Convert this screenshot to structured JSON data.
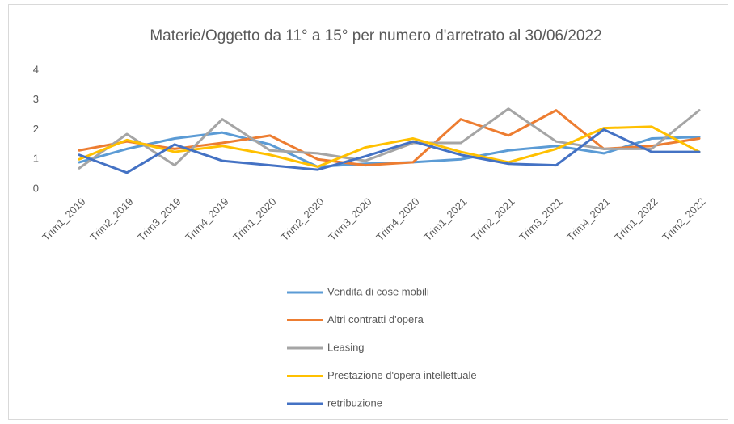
{
  "chart_data": {
    "type": "line",
    "title": "Materie/Oggetto da 11° a 15° per numero  d'arretrato al 30/06/2022",
    "categories": [
      "Trim1_2019",
      "Trim2_2019",
      "Trim3_2019",
      "Trim4_2019",
      "Trim1_2020",
      "Trim2_2020",
      "Trim3_2020",
      "Trim4_2020",
      "Trim1_2021",
      "Trim2_2021",
      "Trim3_2021",
      "Trim4_2021",
      "Trim1_2022",
      "Trim2_2022"
    ],
    "series": [
      {
        "name": "Vendita di cose mobili",
        "color": "#5b9bd5",
        "values": [
          0.9,
          1.35,
          1.7,
          1.9,
          1.5,
          0.75,
          0.85,
          0.9,
          1.0,
          1.3,
          1.45,
          1.2,
          1.7,
          1.75
        ]
      },
      {
        "name": "Altri contratti d'opera",
        "color": "#ed7d31",
        "values": [
          1.3,
          1.6,
          1.35,
          1.55,
          1.8,
          1.0,
          0.8,
          0.9,
          2.35,
          1.8,
          2.65,
          1.35,
          1.45,
          1.7
        ]
      },
      {
        "name": "Leasing",
        "color": "#a5a5a5",
        "values": [
          0.7,
          1.85,
          0.8,
          2.35,
          1.3,
          1.2,
          0.95,
          1.55,
          1.55,
          2.7,
          1.6,
          1.35,
          1.35,
          2.65
        ]
      },
      {
        "name": "Prestazione d'opera intellettuale",
        "color": "#ffc000",
        "values": [
          1.0,
          1.65,
          1.25,
          1.45,
          1.15,
          0.75,
          1.4,
          1.7,
          1.25,
          0.9,
          1.35,
          2.05,
          2.1,
          1.25
        ]
      },
      {
        "name": "retribuzione",
        "color": "#4472c4",
        "values": [
          1.15,
          0.55,
          1.5,
          0.95,
          0.8,
          0.65,
          1.1,
          1.6,
          1.15,
          0.85,
          0.8,
          2.0,
          1.25,
          1.25
        ]
      }
    ],
    "ylim": [
      0,
      4
    ],
    "yticks": [
      0,
      1,
      2,
      3,
      4
    ],
    "grid": false
  }
}
